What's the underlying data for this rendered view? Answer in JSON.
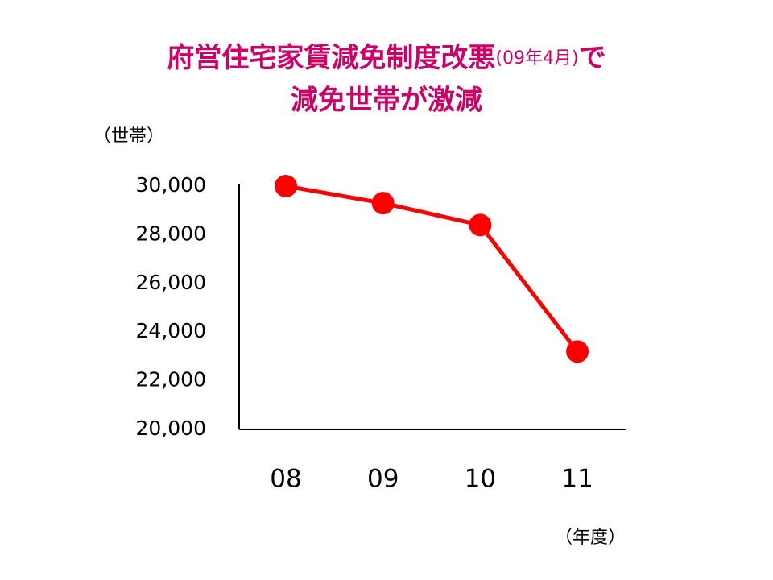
{
  "chart_data": {
    "type": "line",
    "title": [
      [
        "府営住宅家賃減免制度改悪",
        "(09年4月)",
        "で"
      ],
      [
        "減免世帯が激減"
      ]
    ],
    "y_label": "（世帯）",
    "x_label": "（年度）",
    "categories": [
      "08",
      "09",
      "10",
      "11"
    ],
    "values": [
      30000,
      29300,
      28400,
      23200
    ],
    "color": "#ff0000",
    "ylim": [
      20000,
      30000
    ],
    "yticks": [
      {
        "value": 20000,
        "label": "20,000"
      },
      {
        "value": 22000,
        "label": "22,000"
      },
      {
        "value": 24000,
        "label": "24,000"
      },
      {
        "value": 26000,
        "label": "26,000"
      },
      {
        "value": 28000,
        "label": "28,000"
      },
      {
        "value": 30000,
        "label": "30,000"
      }
    ],
    "grid": false
  }
}
